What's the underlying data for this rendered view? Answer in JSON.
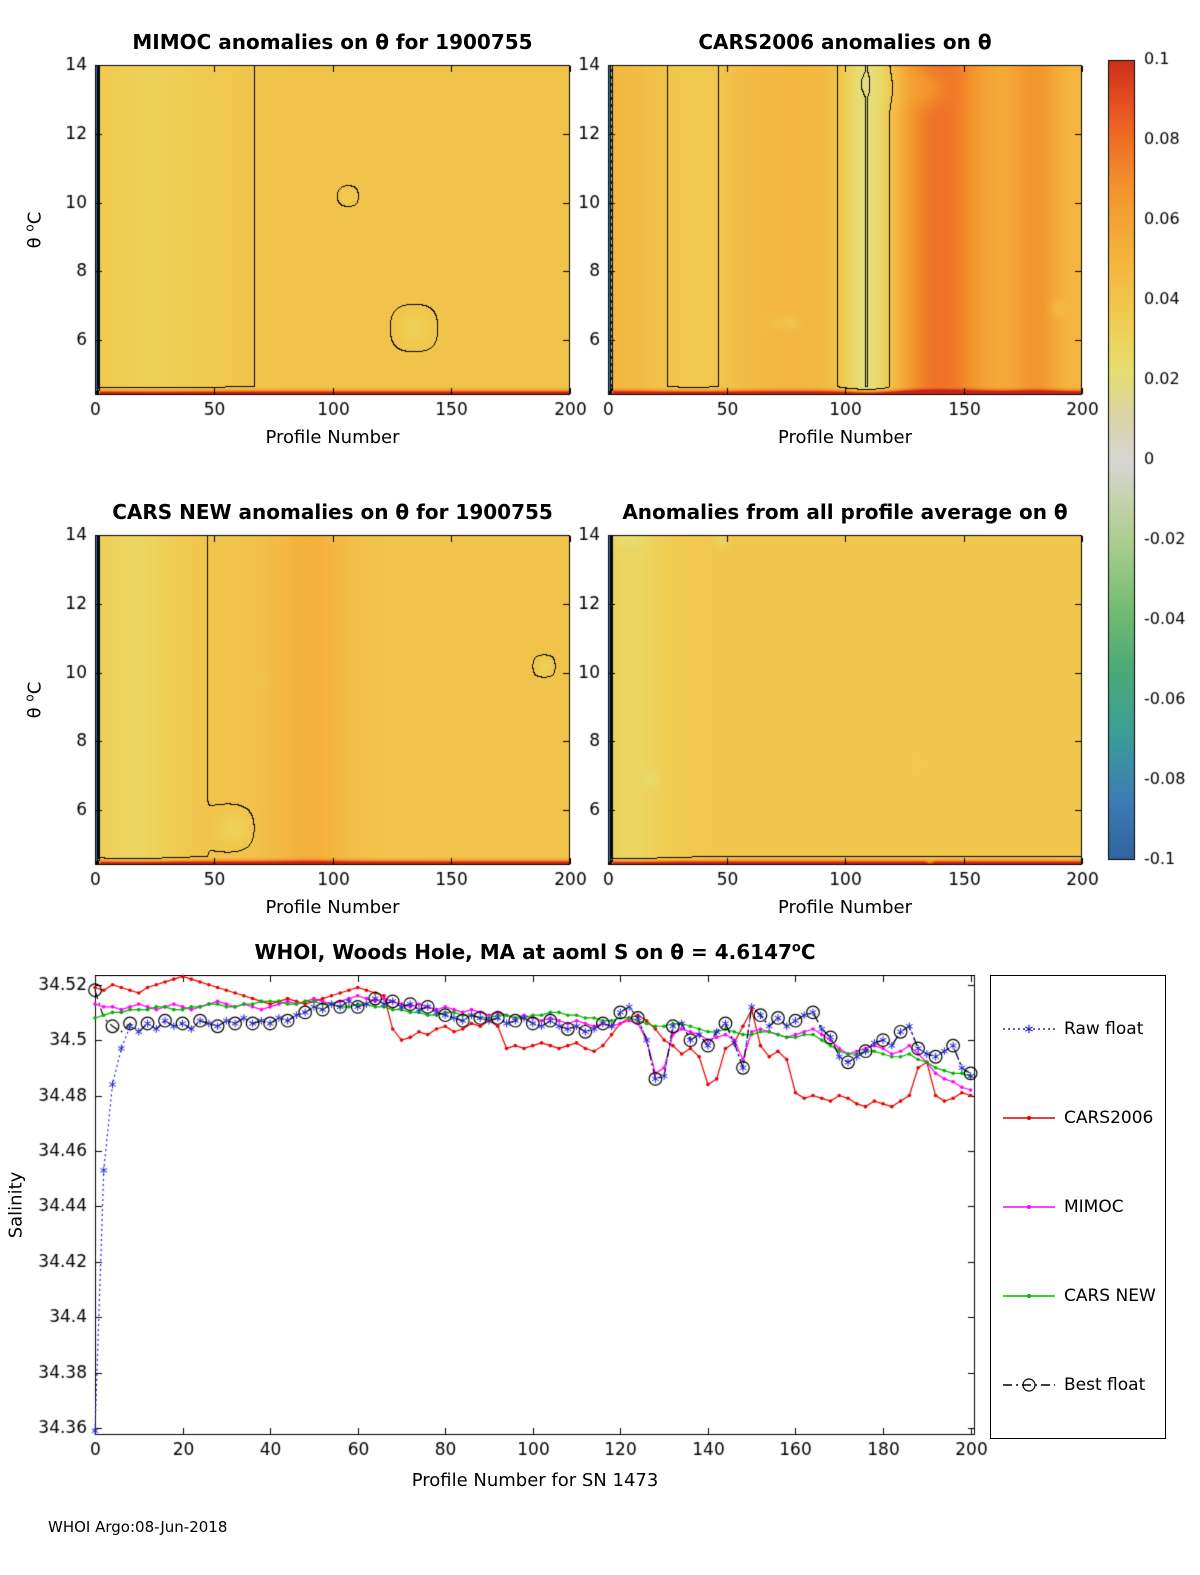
{
  "page": {
    "footer": "WHOI Argo:08-Jun-2018"
  },
  "colorbar": {
    "min": -0.1,
    "max": 0.1,
    "tick_labels": [
      "0.1",
      "0.08",
      "0.06",
      "0.04",
      "0.02",
      "0",
      "-0.02",
      "-0.04",
      "-0.06",
      "-0.08",
      "-0.1"
    ],
    "tick_values": [
      0.1,
      0.08,
      0.06,
      0.04,
      0.02,
      0,
      -0.02,
      -0.04,
      -0.06,
      -0.08,
      -0.1
    ],
    "colormap_stops": [
      {
        "v": -0.104,
        "c": "#2e5c9a"
      },
      {
        "v": -0.085,
        "c": "#3c7cb5"
      },
      {
        "v": -0.068,
        "c": "#3d9e96"
      },
      {
        "v": -0.052,
        "c": "#4cab76"
      },
      {
        "v": -0.036,
        "c": "#79bd74"
      },
      {
        "v": -0.022,
        "c": "#a6cd8c"
      },
      {
        "v": -0.01,
        "c": "#c6d2ae"
      },
      {
        "v": 0.0,
        "c": "#d7d7d3"
      },
      {
        "v": 0.01,
        "c": "#d9d4ac"
      },
      {
        "v": 0.022,
        "c": "#e7de72"
      },
      {
        "v": 0.036,
        "c": "#f0cb50"
      },
      {
        "v": 0.052,
        "c": "#f4b23c"
      },
      {
        "v": 0.068,
        "c": "#f3952c"
      },
      {
        "v": 0.085,
        "c": "#ec5f24"
      },
      {
        "v": 0.104,
        "c": "#c62119"
      }
    ]
  },
  "chart_data": [
    {
      "type": "heatmap",
      "id": "mimoc-anomalies",
      "title": "MIMOC anomalies on θ  for 1900755",
      "xlabel": "Profile Number",
      "ylabel_pre": "θ ",
      "ylabel_sup": "o",
      "ylabel_post": "C",
      "xlim": [
        0,
        200
      ],
      "ylim": [
        4.4,
        14
      ],
      "xtick_labels": [
        "0",
        "50",
        "100",
        "150",
        "200"
      ],
      "xtick_values": [
        0,
        50,
        100,
        150,
        200
      ],
      "ytick_labels": [
        "6",
        "8",
        "10",
        "12",
        "14"
      ],
      "ytick_values": [
        6,
        8,
        10,
        12,
        14
      ],
      "value_range": [
        -0.1,
        0.1
      ]
    },
    {
      "type": "heatmap",
      "id": "cars2006-anomalies",
      "title": "CARS2006 anomalies on θ",
      "xlabel": "Profile Number",
      "xlim": [
        0,
        200
      ],
      "ylim": [
        4.4,
        14
      ],
      "xtick_labels": [
        "0",
        "50",
        "100",
        "150",
        "200"
      ],
      "xtick_values": [
        0,
        50,
        100,
        150,
        200
      ],
      "ytick_labels": [
        "6",
        "8",
        "10",
        "12",
        "14"
      ],
      "ytick_values": [
        6,
        8,
        10,
        12,
        14
      ],
      "value_range": [
        -0.1,
        0.1
      ]
    },
    {
      "type": "heatmap",
      "id": "carsnew-anomalies",
      "title": "CARS NEW anomalies on θ for 1900755",
      "xlabel": "Profile Number",
      "ylabel_pre": "θ ",
      "ylabel_sup": "o",
      "ylabel_post": "C",
      "xlim": [
        0,
        200
      ],
      "ylim": [
        4.4,
        14
      ],
      "xtick_labels": [
        "0",
        "50",
        "100",
        "150",
        "200"
      ],
      "xtick_values": [
        0,
        50,
        100,
        150,
        200
      ],
      "ytick_labels": [
        "6",
        "8",
        "10",
        "12",
        "14"
      ],
      "ytick_values": [
        6,
        8,
        10,
        12,
        14
      ],
      "value_range": [
        -0.1,
        0.1
      ]
    },
    {
      "type": "heatmap",
      "id": "allprofile-anomalies",
      "title": "Anomalies from all profile average on θ",
      "xlabel": "Profile Number",
      "xlim": [
        0,
        200
      ],
      "ylim": [
        4.4,
        14
      ],
      "xtick_labels": [
        "0",
        "50",
        "100",
        "150",
        "200"
      ],
      "xtick_values": [
        0,
        50,
        100,
        150,
        200
      ],
      "ytick_labels": [
        "6",
        "8",
        "10",
        "12",
        "14"
      ],
      "ytick_values": [
        6,
        8,
        10,
        12,
        14
      ],
      "value_range": [
        -0.1,
        0.1
      ]
    },
    {
      "type": "line",
      "id": "salinity-comparison",
      "title_pre": "WHOI, Woods Hole, MA at aoml S on θ = 4.6147",
      "title_sup": "o",
      "title_post": "C",
      "xlabel": "Profile Number for SN 1473",
      "ylabel": "Salinity",
      "xlim": [
        0,
        201
      ],
      "ylim": [
        34.3575,
        34.5235
      ],
      "xtick_labels": [
        "0",
        "20",
        "40",
        "60",
        "80",
        "100",
        "120",
        "140",
        "160",
        "180",
        "200"
      ],
      "xtick_values": [
        0,
        20,
        40,
        60,
        80,
        100,
        120,
        140,
        160,
        180,
        200
      ],
      "ytick_labels": [
        "34.36",
        "34.38",
        "34.4",
        "34.42",
        "34.44",
        "34.46",
        "34.48",
        "34.5",
        "34.52"
      ],
      "ytick_values": [
        34.36,
        34.38,
        34.4,
        34.42,
        34.44,
        34.46,
        34.48,
        34.5,
        34.52
      ],
      "x": [
        0,
        2,
        4,
        6,
        8,
        10,
        12,
        14,
        16,
        18,
        20,
        22,
        24,
        26,
        28,
        30,
        32,
        34,
        36,
        38,
        40,
        42,
        44,
        46,
        48,
        50,
        52,
        54,
        56,
        58,
        60,
        62,
        64,
        66,
        68,
        70,
        72,
        74,
        76,
        78,
        80,
        82,
        84,
        86,
        88,
        90,
        92,
        94,
        96,
        98,
        100,
        102,
        104,
        106,
        108,
        110,
        112,
        114,
        116,
        118,
        120,
        122,
        124,
        126,
        128,
        130,
        132,
        134,
        136,
        138,
        140,
        142,
        144,
        146,
        148,
        150,
        152,
        154,
        156,
        158,
        160,
        162,
        164,
        166,
        168,
        170,
        172,
        174,
        176,
        178,
        180,
        182,
        184,
        186,
        188,
        190,
        192,
        194,
        196,
        198,
        200
      ],
      "series": [
        {
          "name": "Raw float",
          "color": "#2424d6",
          "line": "dotted",
          "marker": "asterisk",
          "marker_every": 1,
          "values": [
            34.359,
            34.453,
            34.484,
            34.497,
            34.505,
            34.503,
            34.506,
            34.504,
            34.507,
            34.505,
            34.506,
            34.504,
            34.507,
            34.506,
            34.505,
            34.507,
            34.506,
            34.508,
            34.506,
            34.507,
            34.506,
            34.508,
            34.507,
            34.509,
            34.51,
            34.512,
            34.511,
            34.513,
            34.512,
            34.514,
            34.512,
            34.513,
            34.515,
            34.513,
            34.514,
            34.512,
            34.513,
            34.511,
            34.512,
            34.51,
            34.509,
            34.508,
            34.507,
            34.509,
            34.508,
            34.507,
            34.508,
            34.506,
            34.507,
            34.508,
            34.506,
            34.505,
            34.507,
            34.505,
            34.504,
            34.505,
            34.503,
            34.504,
            34.506,
            34.505,
            34.51,
            34.512,
            34.508,
            34.5,
            34.486,
            34.487,
            34.505,
            34.506,
            34.5,
            34.502,
            34.498,
            34.503,
            34.506,
            34.499,
            34.49,
            34.512,
            34.509,
            34.505,
            34.508,
            34.505,
            34.507,
            34.509,
            34.51,
            34.504,
            34.501,
            34.494,
            34.492,
            34.494,
            34.496,
            34.499,
            34.5,
            34.498,
            34.503,
            34.505,
            34.497,
            34.495,
            34.494,
            34.496,
            34.498,
            34.49,
            34.487
          ]
        },
        {
          "name": "CARS2006",
          "color": "#e60000",
          "line": "solid",
          "marker": "dot",
          "marker_every": 1,
          "values": [
            34.519,
            34.518,
            34.52,
            34.519,
            34.518,
            34.517,
            34.519,
            34.52,
            34.521,
            34.522,
            34.523,
            34.522,
            34.521,
            34.52,
            34.519,
            34.518,
            34.517,
            34.516,
            34.515,
            34.514,
            34.513,
            34.514,
            34.515,
            34.514,
            34.513,
            34.514,
            34.515,
            34.516,
            34.517,
            34.518,
            34.519,
            34.518,
            34.517,
            34.516,
            34.504,
            34.5,
            34.501,
            34.503,
            34.502,
            34.504,
            34.505,
            34.503,
            34.504,
            34.506,
            34.505,
            34.507,
            34.505,
            34.497,
            34.498,
            34.497,
            34.498,
            34.499,
            34.498,
            34.497,
            34.498,
            34.499,
            34.497,
            34.496,
            34.498,
            34.502,
            34.506,
            34.508,
            34.509,
            34.507,
            34.504,
            34.5,
            34.498,
            34.495,
            34.497,
            34.494,
            34.484,
            34.486,
            34.497,
            34.499,
            34.505,
            34.511,
            34.498,
            34.494,
            34.496,
            34.493,
            34.481,
            34.479,
            34.48,
            34.479,
            34.478,
            34.48,
            34.479,
            34.477,
            34.476,
            34.478,
            34.477,
            34.476,
            34.478,
            34.48,
            34.49,
            34.492,
            34.48,
            34.478,
            34.479,
            34.481,
            34.48
          ]
        },
        {
          "name": "MIMOC",
          "color": "#ff00ff",
          "line": "solid",
          "marker": "dot",
          "marker_every": 1,
          "values": [
            34.513,
            34.512,
            34.512,
            34.511,
            34.512,
            34.513,
            34.512,
            34.511,
            34.512,
            34.513,
            34.512,
            34.511,
            34.512,
            34.513,
            34.514,
            34.513,
            34.512,
            34.513,
            34.512,
            34.511,
            34.512,
            34.513,
            34.514,
            34.513,
            34.514,
            34.515,
            34.514,
            34.513,
            34.514,
            34.515,
            34.516,
            34.515,
            34.514,
            34.515,
            34.514,
            34.513,
            34.512,
            34.513,
            34.512,
            34.511,
            34.512,
            34.511,
            34.51,
            34.511,
            34.51,
            34.509,
            34.51,
            34.509,
            34.508,
            34.509,
            34.508,
            34.507,
            34.508,
            34.507,
            34.506,
            34.507,
            34.506,
            34.505,
            34.506,
            34.505,
            34.506,
            34.507,
            34.506,
            34.5,
            34.488,
            34.49,
            34.502,
            34.504,
            34.503,
            34.502,
            34.5,
            34.501,
            34.502,
            34.5,
            34.493,
            34.503,
            34.504,
            34.503,
            34.502,
            34.501,
            34.502,
            34.503,
            34.504,
            34.502,
            34.5,
            34.497,
            34.495,
            34.496,
            34.497,
            34.498,
            34.497,
            34.495,
            34.496,
            34.498,
            34.495,
            34.492,
            34.488,
            34.486,
            34.485,
            34.483,
            34.482
          ]
        },
        {
          "name": "CARS NEW",
          "color": "#00b400",
          "line": "solid",
          "marker": "dot",
          "marker_every": 1,
          "values": [
            34.508,
            34.509,
            34.51,
            34.51,
            34.511,
            34.511,
            34.511,
            34.512,
            34.512,
            34.511,
            34.511,
            34.512,
            34.512,
            34.513,
            34.513,
            34.512,
            34.512,
            34.513,
            34.513,
            34.514,
            34.514,
            34.514,
            34.513,
            34.513,
            34.514,
            34.514,
            34.513,
            34.513,
            34.512,
            34.512,
            34.513,
            34.513,
            34.512,
            34.512,
            34.511,
            34.511,
            34.51,
            34.51,
            34.509,
            34.509,
            34.51,
            34.51,
            34.509,
            34.509,
            34.508,
            34.508,
            34.509,
            34.509,
            34.508,
            34.508,
            34.509,
            34.509,
            34.51,
            34.51,
            34.509,
            34.509,
            34.508,
            34.508,
            34.507,
            34.507,
            34.508,
            34.508,
            34.507,
            34.506,
            34.505,
            34.505,
            34.506,
            34.506,
            34.505,
            34.504,
            34.503,
            34.503,
            34.504,
            34.503,
            34.502,
            34.502,
            34.503,
            34.503,
            34.502,
            34.501,
            34.501,
            34.502,
            34.502,
            34.5,
            34.498,
            34.496,
            34.495,
            34.495,
            34.496,
            34.496,
            34.495,
            34.494,
            34.494,
            34.495,
            34.493,
            34.492,
            34.49,
            34.489,
            34.488,
            34.488,
            34.487
          ]
        },
        {
          "name": "Best float",
          "color": "#000000",
          "line": "dashdot",
          "marker": "open-circle",
          "marker_every": 2,
          "values": [
            34.518,
            34.508,
            34.505,
            34.503,
            34.506,
            34.503,
            34.506,
            34.504,
            34.507,
            34.505,
            34.506,
            34.504,
            34.507,
            34.506,
            34.505,
            34.507,
            34.506,
            34.508,
            34.506,
            34.507,
            34.506,
            34.508,
            34.507,
            34.509,
            34.51,
            34.512,
            34.511,
            34.513,
            34.512,
            34.514,
            34.512,
            34.513,
            34.515,
            34.513,
            34.514,
            34.512,
            34.513,
            34.511,
            34.512,
            34.51,
            34.509,
            34.508,
            34.507,
            34.509,
            34.508,
            34.507,
            34.508,
            34.506,
            34.507,
            34.508,
            34.506,
            34.505,
            34.507,
            34.505,
            34.504,
            34.505,
            34.503,
            34.504,
            34.506,
            34.505,
            34.51,
            34.512,
            34.508,
            34.5,
            34.486,
            34.487,
            34.505,
            34.506,
            34.5,
            34.502,
            34.498,
            34.503,
            34.506,
            34.499,
            34.49,
            34.512,
            34.509,
            34.505,
            34.508,
            34.505,
            34.507,
            34.509,
            34.51,
            34.504,
            34.501,
            34.494,
            34.492,
            34.494,
            34.496,
            34.499,
            34.5,
            34.498,
            34.503,
            34.505,
            34.497,
            34.495,
            34.494,
            34.496,
            34.498,
            34.49,
            34.488
          ]
        }
      ]
    }
  ]
}
